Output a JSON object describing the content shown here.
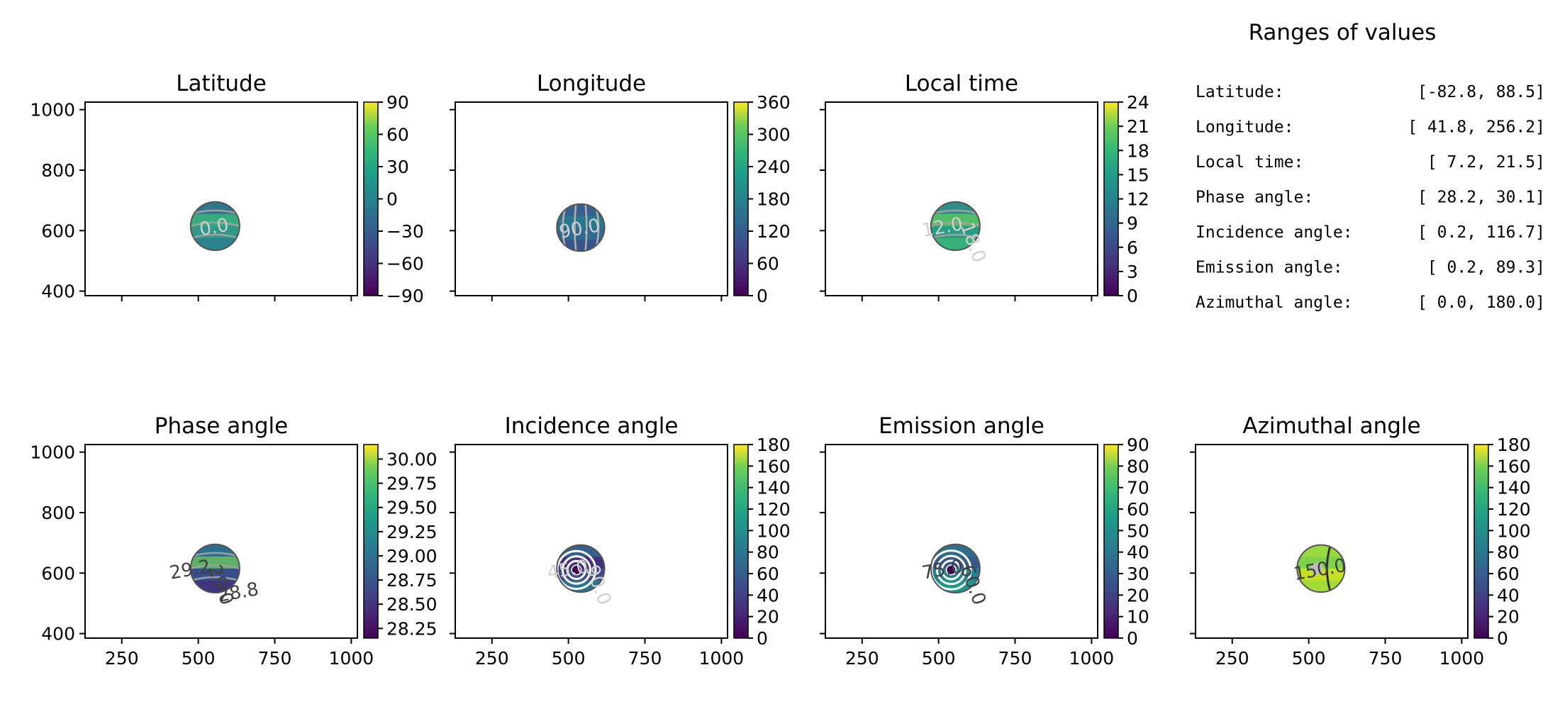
{
  "figure": {
    "ranges_title": "Ranges of values",
    "ranges": [
      {
        "label": "Latitude:",
        "value": "[-82.8,  88.5]"
      },
      {
        "label": "Longitude:",
        "value": "[ 41.8, 256.2]"
      },
      {
        "label": "Local time:",
        "value": "[  7.2,  21.5]"
      },
      {
        "label": "Phase angle:",
        "value": "[ 28.2,  30.1]"
      },
      {
        "label": "Incidence angle:",
        "value": "[  0.2, 116.7]"
      },
      {
        "label": "Emission angle:",
        "value": "[  0.2,  89.3]"
      },
      {
        "label": "Azimuthal angle:",
        "value": "[  0.0, 180.0]"
      }
    ]
  },
  "chart_data": [
    {
      "type": "heatmap",
      "title": "Latitude",
      "xlim": [
        130,
        1020
      ],
      "ylim": [
        385,
        1025
      ],
      "xticks": [
        250,
        500,
        750,
        1000
      ],
      "yticks": [
        400,
        600,
        800,
        1000
      ],
      "show_xticklabels": false,
      "show_yticklabels": true,
      "colormap": "viridis",
      "colorbar_ticks": [
        "90",
        "60",
        "30",
        "0",
        "−30",
        "−60",
        "−90"
      ],
      "colorbar_range": [
        -90,
        90
      ],
      "disk": {
        "cx": 555,
        "cy": 615,
        "r": 80
      },
      "contour_labels": [
        "0.0"
      ]
    },
    {
      "type": "heatmap",
      "title": "Longitude",
      "xlim": [
        130,
        1020
      ],
      "ylim": [
        385,
        1025
      ],
      "xticks": [
        250,
        500,
        750,
        1000
      ],
      "yticks": [
        400,
        600,
        800,
        1000
      ],
      "show_xticklabels": false,
      "show_yticklabels": false,
      "colormap": "viridis",
      "colorbar_ticks": [
        "360",
        "300",
        "240",
        "180",
        "120",
        "60",
        "0"
      ],
      "colorbar_range": [
        0,
        360
      ],
      "disk": {
        "cx": 540,
        "cy": 610,
        "r": 78
      },
      "contour_labels": [
        "90.0"
      ]
    },
    {
      "type": "heatmap",
      "title": "Local time",
      "xlim": [
        130,
        1020
      ],
      "ylim": [
        385,
        1025
      ],
      "xticks": [
        250,
        500,
        750,
        1000
      ],
      "yticks": [
        400,
        600,
        800,
        1000
      ],
      "show_xticklabels": false,
      "show_yticklabels": false,
      "colormap": "viridis",
      "colorbar_ticks": [
        "24",
        "21",
        "18",
        "15",
        "12",
        "9",
        "6",
        "3",
        "0"
      ],
      "colorbar_range": [
        0,
        24
      ],
      "disk": {
        "cx": 555,
        "cy": 615,
        "r": 80
      },
      "contour_labels": [
        "12.0",
        "18.0"
      ]
    },
    {
      "type": "heatmap",
      "title": "Phase angle",
      "xlim": [
        130,
        1020
      ],
      "ylim": [
        385,
        1025
      ],
      "xticks": [
        250,
        500,
        750,
        1000
      ],
      "yticks": [
        400,
        600,
        800,
        1000
      ],
      "show_xticklabels": true,
      "show_yticklabels": true,
      "colormap": "viridis",
      "colorbar_ticks": [
        "30.00",
        "29.75",
        "29.50",
        "29.25",
        "29.00",
        "28.75",
        "28.50",
        "28.25"
      ],
      "colorbar_range": [
        28.15,
        30.15
      ],
      "disk": {
        "cx": 555,
        "cy": 615,
        "r": 80
      },
      "contour_labels": [
        "29.2",
        "29.0",
        "28.8"
      ]
    },
    {
      "type": "heatmap",
      "title": "Incidence angle",
      "xlim": [
        130,
        1020
      ],
      "ylim": [
        385,
        1025
      ],
      "xticks": [
        250,
        500,
        750,
        1000
      ],
      "yticks": [
        400,
        600,
        800,
        1000
      ],
      "show_xticklabels": true,
      "show_yticklabels": false,
      "colormap": "viridis",
      "colorbar_ticks": [
        "180",
        "160",
        "140",
        "120",
        "100",
        "80",
        "60",
        "40",
        "20",
        "0"
      ],
      "colorbar_range": [
        0,
        180
      ],
      "disk": {
        "cx": 540,
        "cy": 615,
        "r": 78
      },
      "contour_labels": [
        "45.0",
        "90.0"
      ]
    },
    {
      "type": "heatmap",
      "title": "Emission angle",
      "xlim": [
        130,
        1020
      ],
      "ylim": [
        385,
        1025
      ],
      "xticks": [
        250,
        500,
        750,
        1000
      ],
      "yticks": [
        400,
        600,
        800,
        1000
      ],
      "show_xticklabels": true,
      "show_yticklabels": false,
      "colormap": "viridis",
      "colorbar_ticks": [
        "90",
        "80",
        "70",
        "60",
        "50",
        "40",
        "30",
        "20",
        "10",
        "0"
      ],
      "colorbar_range": [
        0,
        90
      ],
      "disk": {
        "cx": 555,
        "cy": 615,
        "r": 80
      },
      "contour_labels": [
        "75.0",
        "60.0"
      ]
    },
    {
      "type": "heatmap",
      "title": "Azimuthal angle",
      "xlim": [
        130,
        1020
      ],
      "ylim": [
        385,
        1025
      ],
      "xticks": [
        250,
        500,
        750,
        1000
      ],
      "yticks": [
        400,
        600,
        800,
        1000
      ],
      "show_xticklabels": true,
      "show_yticklabels": false,
      "colormap": "viridis",
      "colorbar_ticks": [
        "180",
        "160",
        "140",
        "120",
        "100",
        "80",
        "60",
        "40",
        "20",
        "0"
      ],
      "colorbar_range": [
        0,
        180
      ],
      "disk": {
        "cx": 540,
        "cy": 615,
        "r": 78
      },
      "contour_labels": [
        "150.0"
      ]
    }
  ]
}
